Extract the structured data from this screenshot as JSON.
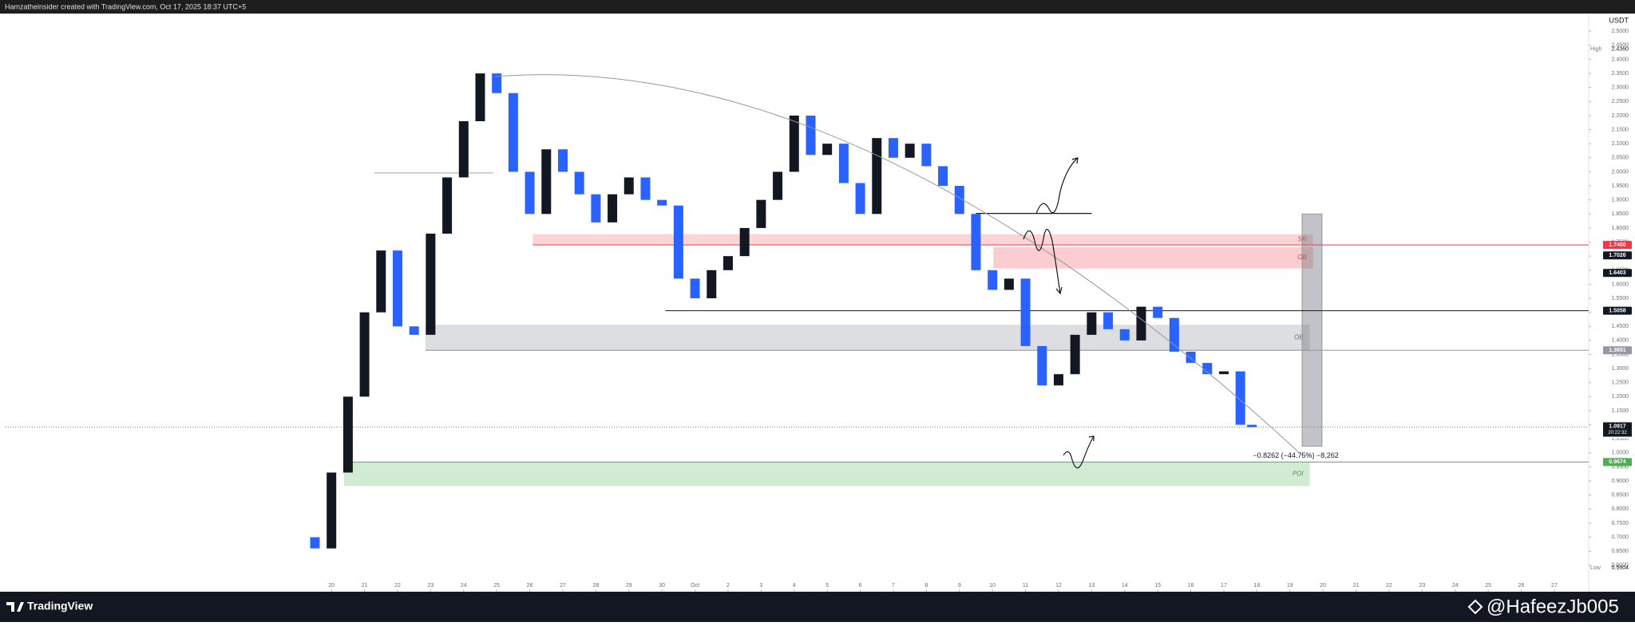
{
  "header": "Hamzatheinsider created with TradingView.com, Oct 17, 2025 18:37 UTC+5",
  "chart_data": {
    "type": "candlestick",
    "currency": "USDT",
    "up_color": "#131722",
    "down_color": "#2962ff",
    "x": [
      -0.5,
      0,
      0.5,
      1,
      1.5,
      2,
      2.5,
      3,
      3.5,
      4,
      4.5,
      5,
      5.5,
      6,
      6.5,
      7,
      7.5,
      8,
      8.5,
      9,
      9.5,
      10,
      10.5,
      11,
      11.5,
      12,
      12.5,
      13,
      13.5,
      14,
      14.5,
      15,
      15.5,
      16,
      16.5,
      17,
      17.5,
      18,
      18.5,
      19,
      19.5,
      20,
      20.5,
      21,
      21.5,
      22,
      22.5,
      23,
      23.5,
      24,
      24.5,
      25,
      25.5,
      26,
      26.5,
      27,
      27.5,
      27.85
    ],
    "open": [
      0.7,
      0.66,
      0.93,
      1.2,
      1.5,
      1.72,
      1.45,
      1.42,
      1.78,
      1.98,
      2.18,
      2.35,
      2.28,
      2.0,
      1.85,
      2.08,
      2.0,
      1.92,
      1.82,
      1.92,
      1.98,
      1.9,
      1.88,
      1.62,
      1.55,
      1.65,
      1.7,
      1.8,
      1.9,
      2.0,
      2.2,
      2.06,
      2.1,
      1.96,
      1.85,
      2.12,
      2.05,
      2.1,
      2.02,
      1.95,
      1.85,
      1.65,
      1.58,
      1.62,
      1.38,
      1.24,
      1.28,
      1.42,
      1.5,
      1.44,
      1.4,
      1.52,
      1.48,
      1.36,
      1.32,
      1.28,
      1.29,
      1.1
    ],
    "high": {
      "tag": "High",
      "value": 2.436,
      "label": "2.4360"
    },
    "low": {
      "tag": "Low",
      "value": 0.5904,
      "label": "0.5904"
    },
    "close": [
      0.66,
      0.93,
      1.2,
      1.5,
      1.72,
      1.45,
      1.42,
      1.78,
      1.98,
      2.18,
      2.35,
      2.28,
      2.0,
      1.85,
      2.08,
      2.0,
      1.92,
      1.82,
      1.92,
      1.98,
      1.9,
      1.88,
      1.62,
      1.55,
      1.65,
      1.7,
      1.8,
      1.9,
      2.0,
      2.2,
      2.06,
      2.1,
      1.96,
      1.85,
      2.12,
      2.05,
      2.1,
      2.02,
      1.95,
      1.85,
      1.65,
      1.58,
      1.62,
      1.38,
      1.24,
      1.28,
      1.42,
      1.5,
      1.44,
      1.4,
      1.52,
      1.48,
      1.36,
      1.32,
      1.28,
      1.29,
      1.1,
      1.0917
    ],
    "xlim": [
      -9.86,
      38.04
    ],
    "ylim": [
      0.506,
      2.563
    ],
    "xticks": [
      {
        "value": 0,
        "label": "20"
      },
      {
        "value": 1,
        "label": "21"
      },
      {
        "value": 2,
        "label": "22"
      },
      {
        "value": 3,
        "label": "23"
      },
      {
        "value": 4,
        "label": "24"
      },
      {
        "value": 5,
        "label": "25"
      },
      {
        "value": 6,
        "label": "26"
      },
      {
        "value": 7,
        "label": "27"
      },
      {
        "value": 8,
        "label": "28"
      },
      {
        "value": 9,
        "label": "29"
      },
      {
        "value": 10,
        "label": "30"
      },
      {
        "value": 11,
        "label": "Oct"
      },
      {
        "value": 12,
        "label": "2"
      },
      {
        "value": 13,
        "label": "3"
      },
      {
        "value": 14,
        "label": "4"
      },
      {
        "value": 15,
        "label": "5"
      },
      {
        "value": 16,
        "label": "6"
      },
      {
        "value": 17,
        "label": "7"
      },
      {
        "value": 18,
        "label": "8"
      },
      {
        "value": 19,
        "label": "9"
      },
      {
        "value": 20,
        "label": "10"
      },
      {
        "value": 21,
        "label": "11"
      },
      {
        "value": 22,
        "label": "12"
      },
      {
        "value": 23,
        "label": "13"
      },
      {
        "value": 24,
        "label": "14"
      },
      {
        "value": 25,
        "label": "15"
      },
      {
        "value": 26,
        "label": "16"
      },
      {
        "value": 27,
        "label": "17"
      },
      {
        "value": 28,
        "label": "18"
      },
      {
        "value": 29,
        "label": "19"
      },
      {
        "value": 30,
        "label": "20"
      },
      {
        "value": 31,
        "label": "21"
      },
      {
        "value": 32,
        "label": "22"
      },
      {
        "value": 33,
        "label": "23"
      },
      {
        "value": 34,
        "label": "24"
      },
      {
        "value": 35,
        "label": "25"
      },
      {
        "value": 36,
        "label": "26"
      },
      {
        "value": 37,
        "label": "27"
      }
    ],
    "yticks": [
      {
        "value": 2.5,
        "label": "2.5000"
      },
      {
        "value": 2.45,
        "label": "2.4500"
      },
      {
        "value": 2.4,
        "label": "2.4000"
      },
      {
        "value": 2.35,
        "label": "2.3500"
      },
      {
        "value": 2.3,
        "label": "2.3000"
      },
      {
        "value": 2.25,
        "label": "2.2500"
      },
      {
        "value": 2.2,
        "label": "2.2000"
      },
      {
        "value": 2.15,
        "label": "2.1500"
      },
      {
        "value": 2.1,
        "label": "2.1000"
      },
      {
        "value": 2.05,
        "label": "2.0500"
      },
      {
        "value": 2.0,
        "label": "2.0000"
      },
      {
        "value": 1.95,
        "label": "1.9500"
      },
      {
        "value": 1.9,
        "label": "1.9000"
      },
      {
        "value": 1.85,
        "label": "1.8500"
      },
      {
        "value": 1.8,
        "label": "1.8000"
      },
      {
        "value": 1.75,
        "label": "1.7500"
      },
      {
        "value": 1.7,
        "label": "1.7000"
      },
      {
        "value": 1.65,
        "label": "1.6500"
      },
      {
        "value": 1.6,
        "label": "1.6000"
      },
      {
        "value": 1.55,
        "label": "1.5500"
      },
      {
        "value": 1.5,
        "label": "1.5000"
      },
      {
        "value": 1.45,
        "label": "1.4500"
      },
      {
        "value": 1.4,
        "label": "1.4000"
      },
      {
        "value": 1.35,
        "label": "1.3500"
      },
      {
        "value": 1.3,
        "label": "1.3000"
      },
      {
        "value": 1.25,
        "label": "1.2500"
      },
      {
        "value": 1.2,
        "label": "1.2000"
      },
      {
        "value": 1.15,
        "label": "1.1500"
      },
      {
        "value": 1.1,
        "label": "1.1000"
      },
      {
        "value": 1.05,
        "label": "1.0500"
      },
      {
        "value": 1.0,
        "label": "1.0000"
      },
      {
        "value": 0.95,
        "label": "0.9500"
      },
      {
        "value": 0.9,
        "label": "0.9000"
      },
      {
        "value": 0.85,
        "label": "0.8500"
      },
      {
        "value": 0.8,
        "label": "0.8000"
      },
      {
        "value": 0.75,
        "label": "0.7500"
      },
      {
        "value": 0.7,
        "label": "0.7000"
      },
      {
        "value": 0.65,
        "label": "0.6500"
      },
      {
        "value": 0.6,
        "label": "0.6000"
      }
    ],
    "zones": [
      {
        "label": "SR",
        "top": 1.778,
        "bottom": 1.741,
        "x0": 6.09,
        "x1": 29.7,
        "color": "rgba(242,54,69,0.22)",
        "text_color": "#b25060"
      },
      {
        "label": "OB",
        "top": 1.733,
        "bottom": 1.656,
        "x0": 20.03,
        "x1": 29.7,
        "color": "rgba(242,54,69,0.25)",
        "text_color": "#b25060"
      },
      {
        "label": "OB",
        "top": 1.456,
        "bottom": 1.363,
        "x0": 2.84,
        "x1": 29.6,
        "color": "rgba(120,123,134,0.25)",
        "text_color": "#707070"
      },
      {
        "label": "POI",
        "top": 0.967,
        "bottom": 0.882,
        "x0": 0.38,
        "x1": 29.6,
        "color": "rgba(76,175,80,0.25)",
        "text_color": "#5a8a5a"
      }
    ],
    "lines": [
      {
        "value": 1.852,
        "x0": 19.5,
        "x1": 23.0,
        "color": "#131722"
      },
      {
        "value": 1.996,
        "x0": 1.3,
        "x1": 4.9,
        "color": "#b2b5be"
      }
    ],
    "price_labels": [
      {
        "value": 1.74,
        "label": "1.7400",
        "box": "#f23645",
        "text_color": "#ffffff",
        "line_from": 6.09,
        "line_color": "#f23645"
      },
      {
        "value": 1.7026,
        "label": "1.7026",
        "box": "#131722",
        "text_color": "#ffffff"
      },
      {
        "value": 1.6403,
        "label": "1.6403",
        "box": "#131722",
        "text_color": "#ffffff"
      },
      {
        "value": 1.5058,
        "label": "1.5058",
        "box": "#131722",
        "text_color": "#ffffff",
        "line_from": 10.1,
        "line_color": "#131722"
      },
      {
        "value": 1.3651,
        "label": "1.3651",
        "box": "#9598a1",
        "text_color": "#ffffff",
        "line_from": 2.84,
        "line_color": "#9598a1"
      },
      {
        "value": 1.0667,
        "label": "1.0667",
        "box": "#ffffff",
        "text_color": "#131722"
      },
      {
        "value": 0.9674,
        "label": "0.9674",
        "box": "#4caf50",
        "text_color": "#ffffff",
        "line_from": 0.38,
        "line_color": "#4caf50"
      }
    ],
    "current": {
      "value": 1.0917,
      "label": "1.0917",
      "countdown": "20:22:32"
    },
    "measure": {
      "text": "−0.8262 (−44.75%) −8,262",
      "top": 1.85,
      "bottom": 1.0238,
      "x0": 29.37,
      "x1": 29.97
    }
  },
  "footer": {
    "brand": "TradingView",
    "watermark": "@HafeezJb005"
  }
}
